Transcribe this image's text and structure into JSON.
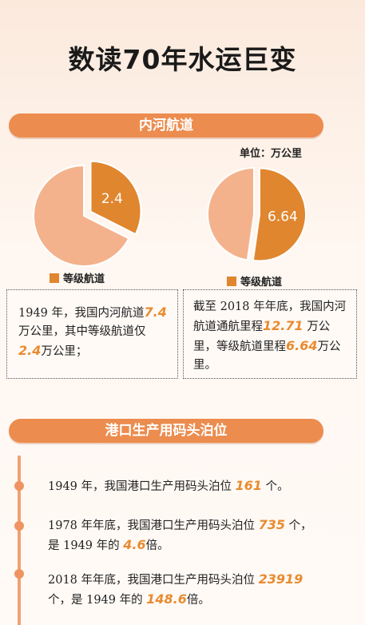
{
  "title": "数读70年水运巨变",
  "section1": {
    "banner": "内河航道",
    "unit": "单位：万公里"
  },
  "chart_data": [
    {
      "type": "pie",
      "year": "1949",
      "total": 7.4,
      "segments": [
        {
          "name": "等级航道",
          "value": 2.4,
          "label": "2.4",
          "color": "#e0862f"
        },
        {
          "name": "",
          "value": 5.0,
          "label": "",
          "color": "#f4b28c"
        }
      ],
      "legend": "等级航道"
    },
    {
      "type": "pie",
      "year": "2018",
      "total": 12.71,
      "segments": [
        {
          "name": "等级航道",
          "value": 6.64,
          "label": "6.64",
          "color": "#e0862f"
        },
        {
          "name": "",
          "value": 6.07,
          "label": "",
          "color": "#f4b28c"
        }
      ],
      "legend": "等级航道"
    }
  ],
  "box1": {
    "t1": "1949 年，我国内河航道",
    "v1": "7.4",
    "t2": "万公里，其中等级航道仅",
    "v2": "2.4",
    "t3": "万公里；"
  },
  "box2": {
    "t1": "截至 2018 年年底，我国内河航道通航里程",
    "v1": "12.71",
    "t2": " 万公里，等级航道里程",
    "v2": "6.64",
    "t3": "万公里。"
  },
  "section2": {
    "banner": "港口生产用码头泊位"
  },
  "timeline": [
    {
      "a": "1949 年，我国港口生产用码头泊位 ",
      "v1": "161",
      "b": " 个。",
      "c": "",
      "v2": "",
      "d": ""
    },
    {
      "a": "1978 年年底，我国港口生产用码头泊位 ",
      "v1": "735",
      "b": " 个，",
      "c": "是 1949 年的 ",
      "v2": "4.6",
      "d": "倍。"
    },
    {
      "a": "2018 年年底，我国港口生产用码头泊位 ",
      "v1": "23919",
      "b": "",
      "c": "个，是 1949 年的 ",
      "v2": "148.6",
      "d": "倍。"
    }
  ]
}
